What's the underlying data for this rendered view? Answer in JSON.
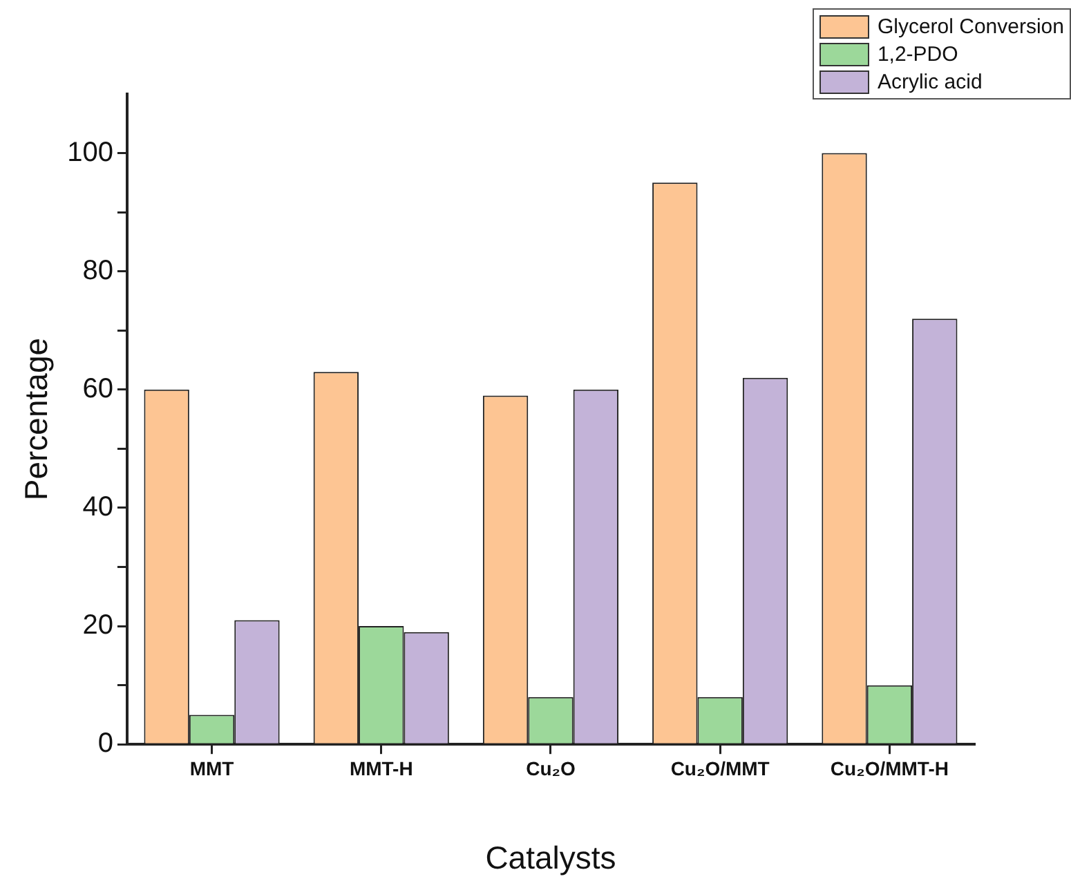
{
  "chart_data": {
    "type": "bar",
    "xlabel": "Catalysts",
    "ylabel": "Percentage",
    "categories": [
      "MMT",
      "MMT-H",
      "Cu₂O",
      "Cu₂O/MMT",
      "Cu₂O/MMT-H"
    ],
    "series": [
      {
        "name": "Glycerol Conversion",
        "color": "#fdc593",
        "values": [
          60,
          63,
          59,
          95,
          100
        ]
      },
      {
        "name": "1,2-PDO",
        "color": "#9cd89a",
        "values": [
          5,
          20,
          8,
          8,
          10
        ]
      },
      {
        "name": "Acrylic acid",
        "color": "#c3b3d8",
        "values": [
          21,
          19,
          60,
          62,
          72
        ]
      }
    ],
    "ylim": [
      0,
      110
    ],
    "yticks": [
      0,
      {
        "value": 10,
        "label": null
      },
      20,
      {
        "value": 30,
        "label": null
      },
      40,
      {
        "value": 50,
        "label": null
      },
      60,
      {
        "value": 70,
        "label": null
      },
      80,
      {
        "value": 90,
        "label": null
      },
      100
    ],
    "grid": false,
    "legend": "top right"
  }
}
